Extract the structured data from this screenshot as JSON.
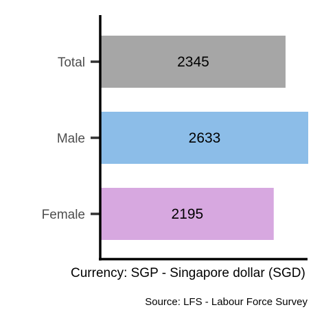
{
  "chart_data": {
    "type": "bar",
    "orientation": "horizontal",
    "categories": [
      "Total",
      "Male",
      "Female"
    ],
    "values": [
      2345,
      2633,
      2195
    ],
    "colors": [
      "#a6a6a6",
      "#8cbde8",
      "#d7a8e0"
    ],
    "xlabel": "Currency: SGP - Singapore dollar (SGD)",
    "ylabel": "",
    "caption": "Source:  LFS - Labour Force Survey",
    "xlim": [
      0,
      2633
    ],
    "grid": false,
    "data_labels": true
  }
}
